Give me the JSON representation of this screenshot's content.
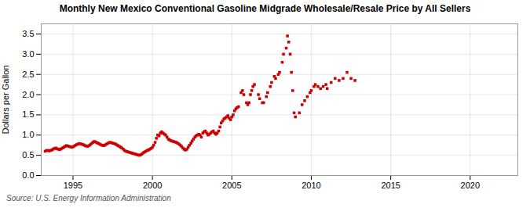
{
  "chart_data": {
    "type": "scatter",
    "title": "Monthly New Mexico Conventional Gasoline Midgrade Wholesale/Resale Price by All Sellers",
    "ylabel": "Dollars per Gallon",
    "annotations": [
      "Source: U.S. Energy Information Administration"
    ],
    "color": "#cc0000",
    "marker": "square",
    "grid": true,
    "xlim": [
      1993.0,
      2023.0
    ],
    "ylim": [
      0.0,
      3.75
    ],
    "xticks": [
      1995,
      2000,
      2005,
      2010,
      2015,
      2020
    ],
    "yticks": [
      {
        "value": 0.0,
        "label": "0.0"
      },
      0.5,
      {
        "value": 1.0,
        "label": "1.0"
      },
      1.5,
      {
        "value": 2.0,
        "label": "2.0"
      },
      2.5,
      {
        "value": 3.0,
        "label": "3.0"
      },
      3.5
    ],
    "x": [
      1993.25,
      1993.33,
      1993.42,
      1993.5,
      1993.58,
      1993.67,
      1993.75,
      1993.83,
      1993.92,
      1994.0,
      1994.08,
      1994.17,
      1994.25,
      1994.33,
      1994.42,
      1994.5,
      1994.58,
      1994.67,
      1994.75,
      1994.83,
      1994.92,
      1995.0,
      1995.08,
      1995.17,
      1995.25,
      1995.33,
      1995.42,
      1995.5,
      1995.58,
      1995.67,
      1995.75,
      1995.83,
      1995.92,
      1996.0,
      1996.08,
      1996.17,
      1996.25,
      1996.33,
      1996.42,
      1996.5,
      1996.58,
      1996.67,
      1996.75,
      1996.83,
      1996.92,
      1997.0,
      1997.08,
      1997.17,
      1997.25,
      1997.33,
      1997.42,
      1997.5,
      1997.58,
      1997.67,
      1997.75,
      1997.83,
      1997.92,
      1998.0,
      1998.08,
      1998.17,
      1998.25,
      1998.33,
      1998.42,
      1998.5,
      1998.58,
      1998.67,
      1998.75,
      1998.83,
      1998.92,
      1999.0,
      1999.08,
      1999.17,
      1999.25,
      1999.33,
      1999.42,
      1999.5,
      1999.58,
      1999.67,
      1999.75,
      1999.83,
      1999.92,
      2000.0,
      2000.08,
      2000.17,
      2000.25,
      2000.33,
      2000.42,
      2000.5,
      2000.58,
      2000.67,
      2000.75,
      2000.83,
      2000.92,
      2001.0,
      2001.08,
      2001.17,
      2001.25,
      2001.33,
      2001.42,
      2001.5,
      2001.58,
      2001.67,
      2001.75,
      2001.83,
      2001.92,
      2002.0,
      2002.08,
      2002.17,
      2002.25,
      2002.33,
      2002.42,
      2002.5,
      2002.58,
      2002.67,
      2002.75,
      2002.83,
      2002.92,
      2003.0,
      2003.08,
      2003.17,
      2003.25,
      2003.33,
      2003.42,
      2003.5,
      2003.58,
      2003.67,
      2003.75,
      2003.83,
      2003.92,
      2004.0,
      2004.08,
      2004.17,
      2004.25,
      2004.33,
      2004.42,
      2004.5,
      2004.58,
      2004.67,
      2004.75,
      2004.83,
      2004.92,
      2005.0,
      2005.08,
      2005.17,
      2005.25,
      2005.33,
      2005.42,
      2005.58,
      2005.67,
      2005.75,
      2005.92,
      2006.0,
      2006.08,
      2006.17,
      2006.25,
      2006.33,
      2006.42,
      2006.67,
      2006.75,
      2006.92,
      2007.0,
      2007.17,
      2007.25,
      2007.42,
      2007.5,
      2007.67,
      2007.75,
      2007.92,
      2008.0,
      2008.17,
      2008.25,
      2008.42,
      2008.5,
      2008.58,
      2008.67,
      2008.75,
      2008.83,
      2008.92,
      2009.0,
      2009.25,
      2009.42,
      2009.58,
      2009.75,
      2009.92,
      2010.0,
      2010.17,
      2010.25,
      2010.42,
      2010.58,
      2010.75,
      2010.92,
      2011.0,
      2011.25,
      2011.5,
      2011.75,
      2012.0,
      2012.25,
      2012.5,
      2012.75
    ],
    "values": [
      0.6,
      0.62,
      0.62,
      0.61,
      0.62,
      0.63,
      0.65,
      0.67,
      0.68,
      0.66,
      0.65,
      0.64,
      0.66,
      0.68,
      0.7,
      0.72,
      0.74,
      0.73,
      0.72,
      0.71,
      0.7,
      0.71,
      0.73,
      0.75,
      0.77,
      0.78,
      0.79,
      0.78,
      0.77,
      0.76,
      0.74,
      0.73,
      0.72,
      0.74,
      0.76,
      0.79,
      0.82,
      0.84,
      0.83,
      0.81,
      0.8,
      0.78,
      0.76,
      0.75,
      0.74,
      0.75,
      0.77,
      0.79,
      0.81,
      0.82,
      0.81,
      0.8,
      0.79,
      0.78,
      0.76,
      0.74,
      0.72,
      0.7,
      0.68,
      0.65,
      0.62,
      0.6,
      0.59,
      0.58,
      0.57,
      0.56,
      0.55,
      0.54,
      0.53,
      0.52,
      0.51,
      0.5,
      0.51,
      0.53,
      0.56,
      0.58,
      0.6,
      0.62,
      0.63,
      0.65,
      0.67,
      0.7,
      0.75,
      0.82,
      0.92,
      1.0,
      0.98,
      1.05,
      1.08,
      1.05,
      1.02,
      1.0,
      0.95,
      0.9,
      0.88,
      0.86,
      0.85,
      0.84,
      0.83,
      0.82,
      0.8,
      0.78,
      0.75,
      0.72,
      0.68,
      0.65,
      0.63,
      0.65,
      0.7,
      0.75,
      0.8,
      0.85,
      0.9,
      0.95,
      0.98,
      1.0,
      1.02,
      1.0,
      0.95,
      1.05,
      1.08,
      1.1,
      1.05,
      1.0,
      1.02,
      1.05,
      1.08,
      1.1,
      1.05,
      1.02,
      1.05,
      1.1,
      1.2,
      1.3,
      1.35,
      1.4,
      1.42,
      1.45,
      1.48,
      1.42,
      1.38,
      1.45,
      1.5,
      1.6,
      1.65,
      1.68,
      1.7,
      2.05,
      2.1,
      2.0,
      1.8,
      1.75,
      1.8,
      2.0,
      2.1,
      2.2,
      2.25,
      2.0,
      1.9,
      1.8,
      1.8,
      1.95,
      2.05,
      2.2,
      2.3,
      2.45,
      2.4,
      2.5,
      2.55,
      2.8,
      3.0,
      3.15,
      3.45,
      3.3,
      3.0,
      2.55,
      2.1,
      1.55,
      1.45,
      1.55,
      1.75,
      1.85,
      1.95,
      2.05,
      2.1,
      2.2,
      2.25,
      2.2,
      2.15,
      2.2,
      2.25,
      2.15,
      2.3,
      2.4,
      2.35,
      2.4,
      2.55,
      2.4,
      2.35
    ]
  }
}
